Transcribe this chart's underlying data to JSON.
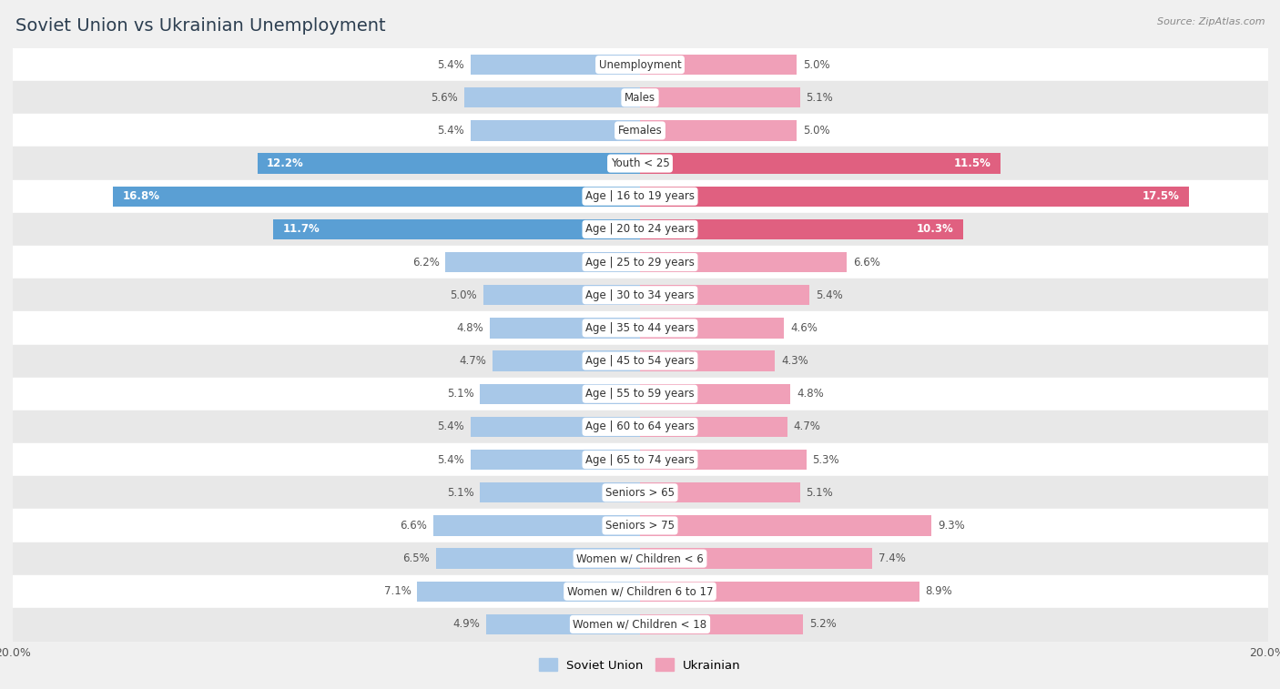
{
  "title": "Soviet Union vs Ukrainian Unemployment",
  "source": "Source: ZipAtlas.com",
  "categories": [
    "Unemployment",
    "Males",
    "Females",
    "Youth < 25",
    "Age | 16 to 19 years",
    "Age | 20 to 24 years",
    "Age | 25 to 29 years",
    "Age | 30 to 34 years",
    "Age | 35 to 44 years",
    "Age | 45 to 54 years",
    "Age | 55 to 59 years",
    "Age | 60 to 64 years",
    "Age | 65 to 74 years",
    "Seniors > 65",
    "Seniors > 75",
    "Women w/ Children < 6",
    "Women w/ Children 6 to 17",
    "Women w/ Children < 18"
  ],
  "soviet_values": [
    5.4,
    5.6,
    5.4,
    12.2,
    16.8,
    11.7,
    6.2,
    5.0,
    4.8,
    4.7,
    5.1,
    5.4,
    5.4,
    5.1,
    6.6,
    6.5,
    7.1,
    4.9
  ],
  "ukrainian_values": [
    5.0,
    5.1,
    5.0,
    11.5,
    17.5,
    10.3,
    6.6,
    5.4,
    4.6,
    4.3,
    4.8,
    4.7,
    5.3,
    5.1,
    9.3,
    7.4,
    8.9,
    5.2
  ],
  "soviet_color_light": "#a8c8e8",
  "soviet_color_dark": "#5a9fd4",
  "ukrainian_color_light": "#f0a0b8",
  "ukrainian_color_dark": "#e06080",
  "background_color": "#f0f0f0",
  "row_even_color": "#ffffff",
  "row_odd_color": "#e8e8e8",
  "xlim": 20.0,
  "bar_height": 0.62,
  "legend_soviet": "Soviet Union",
  "legend_ukrainian": "Ukrainian",
  "title_fontsize": 14,
  "label_fontsize": 8.5,
  "value_fontsize": 8.5
}
